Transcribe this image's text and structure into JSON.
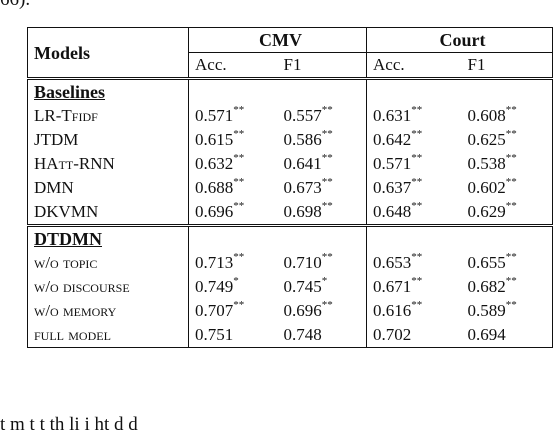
{
  "fragments": {
    "top_text": "66).",
    "bottom_text": "t    m      t  t   th                       li    i   ht        d      d"
  },
  "table": {
    "header_models": "Models",
    "groups": [
      "CMV",
      "Court"
    ],
    "metrics": [
      "Acc.",
      "F1",
      "Acc.",
      "F1"
    ],
    "sections": [
      {
        "title": "Baselines",
        "rows": [
          {
            "model": "LR-Tfidf",
            "values": [
              "0.571",
              "0.557",
              "0.631",
              "0.608"
            ],
            "marks": [
              "**",
              "**",
              "**",
              "**"
            ]
          },
          {
            "model": "JTDM",
            "values": [
              "0.615",
              "0.586",
              "0.642",
              "0.625"
            ],
            "marks": [
              "**",
              "**",
              "**",
              "**"
            ]
          },
          {
            "model": "HAtt-RNN",
            "values": [
              "0.632",
              "0.641",
              "0.571",
              "0.538"
            ],
            "marks": [
              "**",
              "**",
              "**",
              "**"
            ]
          },
          {
            "model": "DMN",
            "values": [
              "0.688",
              "0.673",
              "0.637",
              "0.602"
            ],
            "marks": [
              "**",
              "**",
              "**",
              "**"
            ]
          },
          {
            "model": "DKVMN",
            "values": [
              "0.696",
              "0.698",
              "0.648",
              "0.629"
            ],
            "marks": [
              "**",
              "**",
              "**",
              "**"
            ]
          }
        ]
      },
      {
        "title": "DTDMN",
        "rows": [
          {
            "model": "w/o topic",
            "values": [
              "0.713",
              "0.710",
              "0.653",
              "0.655"
            ],
            "marks": [
              "**",
              "**",
              "**",
              "**"
            ]
          },
          {
            "model": "w/o discourse",
            "values": [
              "0.749",
              "0.745",
              "0.671",
              "0.682"
            ],
            "marks": [
              "*",
              "*",
              "**",
              "**"
            ]
          },
          {
            "model": "w/o memory",
            "values": [
              "0.707",
              "0.696",
              "0.616",
              "0.589"
            ],
            "marks": [
              "**",
              "**",
              "**",
              "**"
            ]
          },
          {
            "model": "full model",
            "values": [
              "0.751",
              "0.748",
              "0.702",
              "0.694"
            ],
            "marks": [
              "",
              "",
              "",
              ""
            ]
          }
        ]
      }
    ]
  }
}
